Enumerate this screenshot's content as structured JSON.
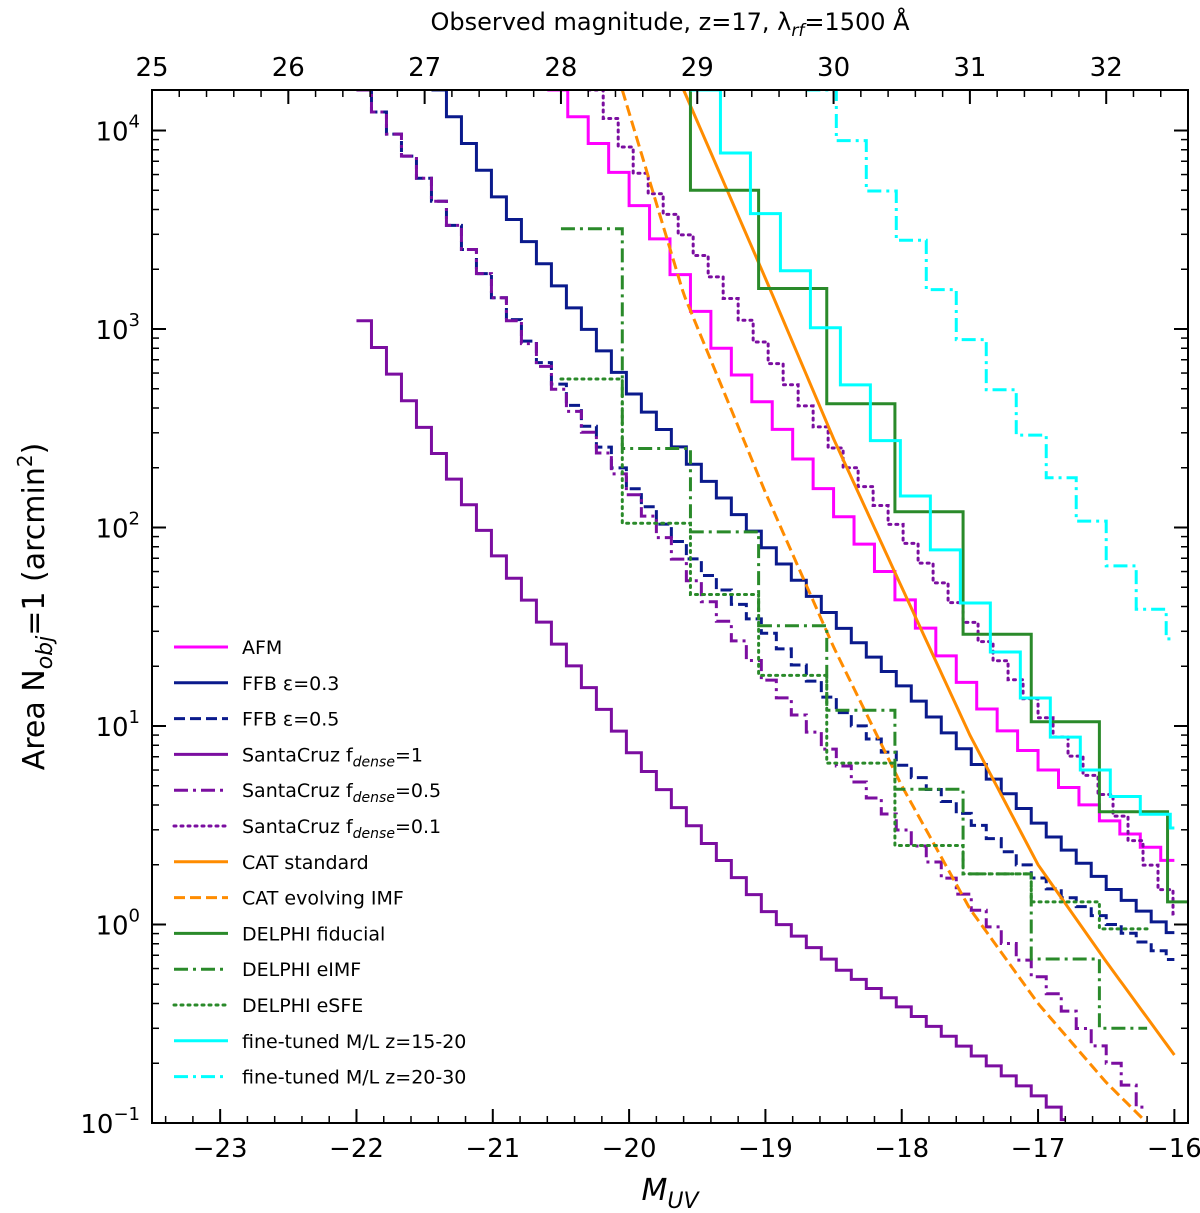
{
  "chart_data": {
    "type": "line",
    "x_scale": "linear",
    "y_scale": "log",
    "xlim": [
      -23.5,
      -15.9
    ],
    "ylim": [
      0.1,
      16000
    ],
    "xlabel": "M_UV",
    "ylabel": "Area N_obj=1 (arcmin^2)",
    "ylabel_parts": {
      "pre": "Area N",
      "sub": "obj",
      "mid": "=1 (arcmin",
      "sup": "2",
      "post": ")"
    },
    "xlabel_parts": {
      "main": "M",
      "sub": "UV"
    },
    "top_axis": {
      "title": "Observed magnitude, z=17, λ",
      "title_sub": "rf",
      "title_post": "=1500 Å",
      "offset": 48.5,
      "ticks": [
        25,
        26,
        27,
        28,
        29,
        30,
        31,
        32
      ],
      "tick_labels": [
        "25",
        "26",
        "27",
        "28",
        "29",
        "30",
        "31",
        "32"
      ]
    },
    "x_ticks": [
      -23,
      -22,
      -21,
      -20,
      -19,
      -18,
      -17,
      -16
    ],
    "x_tick_labels": [
      "−23",
      "−22",
      "−21",
      "−20",
      "−19",
      "−18",
      "−17",
      "−16"
    ],
    "y_ticks": [
      0.1,
      1,
      10,
      100,
      1000,
      10000
    ],
    "y_tick_labels": [
      {
        "base": "10",
        "exp": "−1"
      },
      {
        "base": "10",
        "exp": "0"
      },
      {
        "base": "10",
        "exp": "1"
      },
      {
        "base": "10",
        "exp": "2"
      },
      {
        "base": "10",
        "exp": "3"
      },
      {
        "base": "10",
        "exp": "4"
      }
    ],
    "series": [
      {
        "name": "AFM",
        "label": {
          "pre": "AFM"
        },
        "color": "#ff00ff",
        "dash": "solid",
        "width": 3,
        "stair": 0.15,
        "x": [
          -20.6,
          -20.2,
          -19.8,
          -19.4,
          -19.0,
          -18.6,
          -18.2,
          -17.8,
          -17.4,
          -17.0,
          -16.6,
          -16.0
        ],
        "y": [
          16000,
          7000,
          2500,
          800,
          350,
          140,
          60,
          25,
          11,
          6,
          3.5,
          1.9
        ]
      },
      {
        "name": "FFB eps=0.3",
        "label": {
          "pre": "FFB ε=0.3"
        },
        "color": "#0a1a8c",
        "dash": "solid",
        "width": 3,
        "stair": 0.11,
        "x": [
          -21.45,
          -21.0,
          -20.5,
          -20.0,
          -19.5,
          -19.0,
          -18.5,
          -18.0,
          -17.5,
          -17.0,
          -16.5,
          -16.0
        ],
        "y": [
          16000,
          4500,
          1400,
          450,
          180,
          75,
          32,
          15,
          6.5,
          3.0,
          1.5,
          0.85
        ]
      },
      {
        "name": "FFB eps=0.5",
        "label": {
          "pre": "FFB ε=0.5"
        },
        "color": "#0a1a8c",
        "dash": "dashed",
        "width": 3,
        "stair": 0.11,
        "x": [
          -22.0,
          -21.5,
          -21.0,
          -20.5,
          -20.0,
          -19.5,
          -19.0,
          -18.5,
          -18.0,
          -17.5,
          -17.0,
          -16.5,
          -16.0
        ],
        "y": [
          16000,
          5000,
          1400,
          450,
          150,
          60,
          28,
          12,
          6,
          3.2,
          1.6,
          1.0,
          0.63
        ]
      },
      {
        "name": "SantaCruz f_dense=1",
        "label": {
          "pre": "SantaCruz f",
          "sub": "dense",
          "post": "=1"
        },
        "color": "#7b0ea0",
        "dash": "solid",
        "width": 3,
        "stair": 0.11,
        "x": [
          -22.0,
          -21.5,
          -21.0,
          -20.5,
          -20.0,
          -19.5,
          -19.0,
          -18.5,
          -18.0,
          -17.5,
          -17.0,
          -16.8
        ],
        "y": [
          1100,
          270,
          70,
          22,
          7,
          2.7,
          1.1,
          0.6,
          0.37,
          0.22,
          0.13,
          0.1
        ]
      },
      {
        "name": "SantaCruz f_dense=0.5",
        "label": {
          "pre": "SantaCruz f",
          "sub": "dense",
          "post": "=0.5"
        },
        "color": "#7b0ea0",
        "dash": "dashdot",
        "width": 3,
        "stair": 0.11,
        "x": [
          -22.0,
          -21.5,
          -21.0,
          -20.5,
          -20.0,
          -19.5,
          -19.0,
          -18.5,
          -18.0,
          -17.5,
          -17.0,
          -16.5,
          -16.2
        ],
        "y": [
          16000,
          5000,
          1400,
          420,
          140,
          45,
          16,
          6.5,
          2.8,
          1.2,
          0.5,
          0.2,
          0.1
        ]
      },
      {
        "name": "SantaCruz f_dense=0.1",
        "label": {
          "pre": "SantaCruz f",
          "sub": "dense",
          "post": "=0.1"
        },
        "color": "#7b0ea0",
        "dash": "dotted",
        "width": 3,
        "stair": 0.11,
        "x": [
          -20.3,
          -20.0,
          -19.5,
          -19.0,
          -18.5,
          -18.0,
          -17.5,
          -17.0,
          -16.5,
          -16.0
        ],
        "y": [
          16000,
          6500,
          2200,
          700,
          230,
          85,
          30,
          11,
          4,
          1.1
        ]
      },
      {
        "name": "CAT standard",
        "label": {
          "pre": "CAT standard"
        },
        "color": "#ff8c00",
        "dash": "solid",
        "width": 3,
        "stair": 0,
        "x": [
          -19.6,
          -19.0,
          -18.5,
          -18.0,
          -17.5,
          -17.0,
          -16.5,
          -16.0
        ],
        "y": [
          16000,
          1800,
          280,
          50,
          9,
          2.0,
          0.65,
          0.22
        ]
      },
      {
        "name": "CAT evolving IMF",
        "label": {
          "pre": "CAT evolving IMF"
        },
        "color": "#ff8c00",
        "dash": "dashed",
        "width": 3,
        "stair": 0,
        "x": [
          -20.05,
          -19.6,
          -19.0,
          -18.5,
          -18.0,
          -17.5,
          -17.0,
          -16.5,
          -16.2
        ],
        "y": [
          16000,
          1500,
          150,
          25,
          5,
          1.2,
          0.4,
          0.16,
          0.1
        ]
      },
      {
        "name": "DELPHI fiducial",
        "label": {
          "pre": "DELPHI fiducial"
        },
        "color": "#2a8a2a",
        "dash": "solid",
        "width": 3,
        "stair": 0,
        "steps": [
          [
            -19.55,
            16000
          ],
          [
            -19.55,
            5000
          ],
          [
            -19.05,
            5000
          ],
          [
            -19.05,
            1600
          ],
          [
            -18.55,
            1600
          ],
          [
            -18.55,
            420
          ],
          [
            -18.05,
            420
          ],
          [
            -18.05,
            120
          ],
          [
            -17.55,
            120
          ],
          [
            -17.55,
            29
          ],
          [
            -17.05,
            29
          ],
          [
            -17.05,
            10.5
          ],
          [
            -16.55,
            10.5
          ],
          [
            -16.55,
            3.7
          ],
          [
            -16.05,
            3.7
          ],
          [
            -16.05,
            1.3
          ],
          [
            -15.9,
            1.3
          ]
        ]
      },
      {
        "name": "DELPHI eIMF",
        "label": {
          "pre": "DELPHI eIMF"
        },
        "color": "#2a8a2a",
        "dash": "dashdot",
        "width": 3,
        "stair": 0,
        "steps": [
          [
            -20.5,
            3200
          ],
          [
            -20.05,
            3200
          ],
          [
            -20.05,
            250
          ],
          [
            -19.55,
            250
          ],
          [
            -19.55,
            95
          ],
          [
            -19.05,
            95
          ],
          [
            -19.05,
            32
          ],
          [
            -18.55,
            32
          ],
          [
            -18.55,
            12
          ],
          [
            -18.05,
            12
          ],
          [
            -18.05,
            4.8
          ],
          [
            -17.55,
            4.8
          ],
          [
            -17.55,
            1.8
          ],
          [
            -17.05,
            1.8
          ],
          [
            -17.05,
            0.67
          ],
          [
            -16.55,
            0.67
          ],
          [
            -16.55,
            0.3
          ],
          [
            -16.2,
            0.3
          ]
        ]
      },
      {
        "name": "DELPHI eSFE",
        "label": {
          "pre": "DELPHI eSFE"
        },
        "color": "#2a8a2a",
        "dash": "dotted",
        "width": 3,
        "stair": 0,
        "steps": [
          [
            -20.5,
            560
          ],
          [
            -20.05,
            560
          ],
          [
            -20.05,
            105
          ],
          [
            -19.55,
            105
          ],
          [
            -19.55,
            46
          ],
          [
            -19.05,
            46
          ],
          [
            -19.05,
            18
          ],
          [
            -18.55,
            18
          ],
          [
            -18.55,
            6.5
          ],
          [
            -18.05,
            6.5
          ],
          [
            -18.05,
            2.5
          ],
          [
            -17.55,
            2.5
          ],
          [
            -17.55,
            1.8
          ],
          [
            -17.05,
            1.8
          ],
          [
            -17.05,
            1.3
          ],
          [
            -16.55,
            1.3
          ],
          [
            -16.55,
            0.95
          ],
          [
            -16.2,
            0.95
          ]
        ]
      },
      {
        "name": "fine-tuned M/L z=15-20",
        "label": {
          "pre": "fine-tuned M/L z=15-20"
        },
        "color": "#00ffff",
        "dash": "solid",
        "width": 3,
        "stair": 0.22,
        "x": [
          -19.55,
          -19.2,
          -18.8,
          -18.4,
          -18.0,
          -17.6,
          -17.2,
          -16.8,
          -16.4,
          -16.0
        ],
        "y": [
          16000,
          5000,
          1500,
          450,
          140,
          45,
          16,
          7,
          4,
          3
        ]
      },
      {
        "name": "fine-tuned M/L z=20-30",
        "label": {
          "pre": "fine-tuned M/L z=20-30"
        },
        "color": "#00ffff",
        "dash": "dashdot",
        "width": 3,
        "stair": 0.22,
        "x": [
          -18.7,
          -18.3,
          -17.8,
          -17.3,
          -16.8,
          -16.3,
          -16.0
        ],
        "y": [
          16000,
          5500,
          1500,
          400,
          130,
          40,
          25
        ]
      }
    ]
  }
}
